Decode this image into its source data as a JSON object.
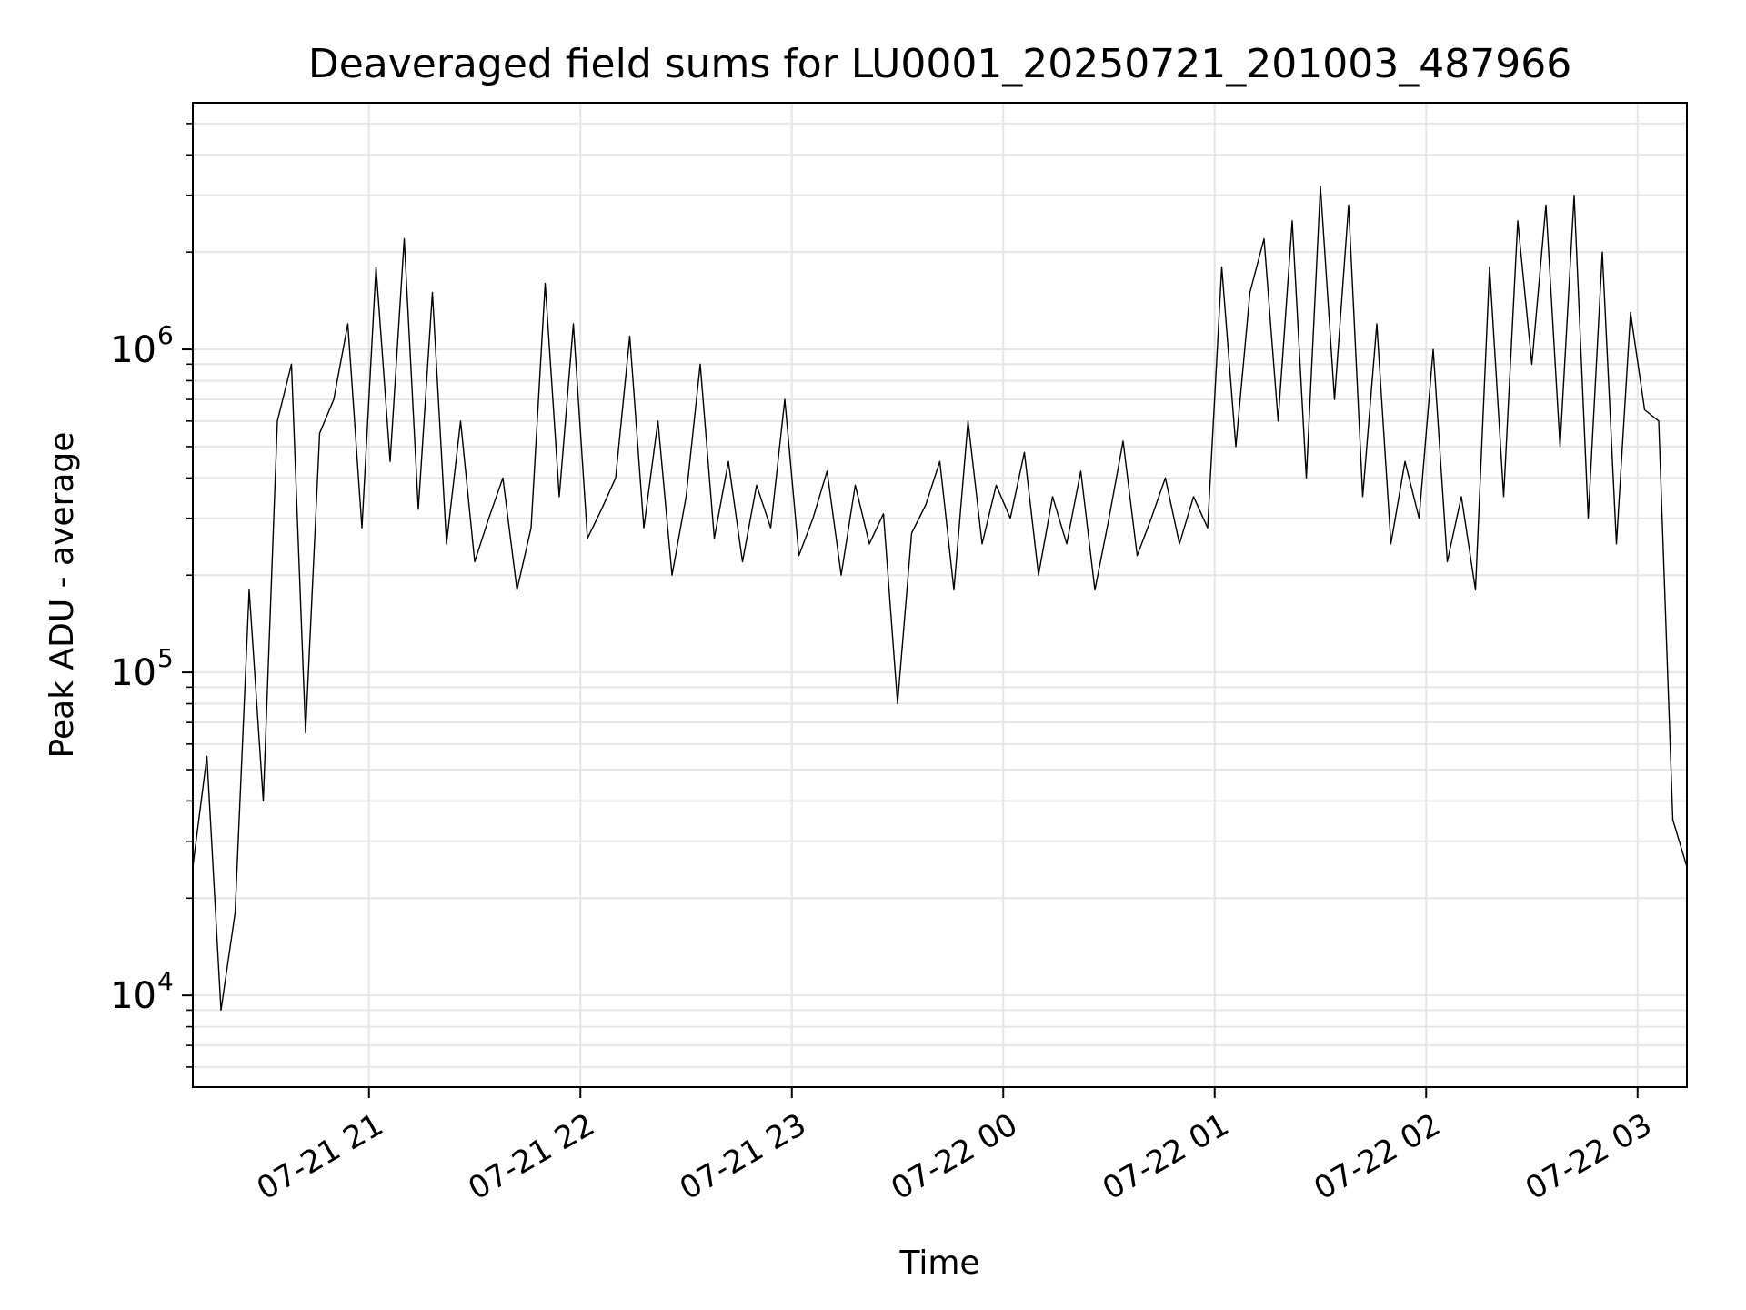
{
  "chart_data": {
    "type": "line",
    "title": "Deaveraged field sums for LU0001_20250721_201003_487966",
    "xlabel": "Time",
    "ylabel": "Peak ADU - average",
    "yscale": "log",
    "ylim": [
      5200,
      5800000
    ],
    "xlim": [
      "2025-07-21 20:10",
      "2025-07-22 03:14"
    ],
    "grid": true,
    "line_color": "#000000",
    "xticks": [
      {
        "t": "2025-07-21 21:00",
        "label": "07-21 21"
      },
      {
        "t": "2025-07-21 22:00",
        "label": "07-21 22"
      },
      {
        "t": "2025-07-21 23:00",
        "label": "07-21 23"
      },
      {
        "t": "2025-07-22 00:00",
        "label": "07-22 00"
      },
      {
        "t": "2025-07-22 01:00",
        "label": "07-22 01"
      },
      {
        "t": "2025-07-22 02:00",
        "label": "07-22 02"
      },
      {
        "t": "2025-07-22 03:00",
        "label": "07-22 03"
      }
    ],
    "yticks": [
      {
        "value": 10000,
        "base": "10",
        "exp": "4"
      },
      {
        "value": 100000,
        "base": "10",
        "exp": "5"
      },
      {
        "value": 1000000,
        "base": "10",
        "exp": "6"
      }
    ],
    "series": [
      {
        "x": [
          "2025-07-21 20:10",
          "2025-07-21 20:14",
          "2025-07-21 20:18",
          "2025-07-21 20:22",
          "2025-07-21 20:26",
          "2025-07-21 20:30",
          "2025-07-21 20:34",
          "2025-07-21 20:38",
          "2025-07-21 20:42",
          "2025-07-21 20:46",
          "2025-07-21 20:50",
          "2025-07-21 20:54",
          "2025-07-21 20:58",
          "2025-07-21 21:02",
          "2025-07-21 21:06",
          "2025-07-21 21:10",
          "2025-07-21 21:14",
          "2025-07-21 21:18",
          "2025-07-21 21:22",
          "2025-07-21 21:26",
          "2025-07-21 21:30",
          "2025-07-21 21:34",
          "2025-07-21 21:38",
          "2025-07-21 21:42",
          "2025-07-21 21:46",
          "2025-07-21 21:50",
          "2025-07-21 21:54",
          "2025-07-21 21:58",
          "2025-07-21 22:02",
          "2025-07-21 22:06",
          "2025-07-21 22:10",
          "2025-07-21 22:14",
          "2025-07-21 22:18",
          "2025-07-21 22:22",
          "2025-07-21 22:26",
          "2025-07-21 22:30",
          "2025-07-21 22:34",
          "2025-07-21 22:38",
          "2025-07-21 22:42",
          "2025-07-21 22:46",
          "2025-07-21 22:50",
          "2025-07-21 22:54",
          "2025-07-21 22:58",
          "2025-07-21 23:02",
          "2025-07-21 23:06",
          "2025-07-21 23:10",
          "2025-07-21 23:14",
          "2025-07-21 23:18",
          "2025-07-21 23:22",
          "2025-07-21 23:26",
          "2025-07-21 23:30",
          "2025-07-21 23:34",
          "2025-07-21 23:38",
          "2025-07-21 23:42",
          "2025-07-21 23:46",
          "2025-07-21 23:50",
          "2025-07-21 23:54",
          "2025-07-21 23:58",
          "2025-07-22 00:02",
          "2025-07-22 00:06",
          "2025-07-22 00:10",
          "2025-07-22 00:14",
          "2025-07-22 00:18",
          "2025-07-22 00:22",
          "2025-07-22 00:26",
          "2025-07-22 00:30",
          "2025-07-22 00:34",
          "2025-07-22 00:38",
          "2025-07-22 00:42",
          "2025-07-22 00:46",
          "2025-07-22 00:50",
          "2025-07-22 00:54",
          "2025-07-22 00:58",
          "2025-07-22 01:02",
          "2025-07-22 01:06",
          "2025-07-22 01:10",
          "2025-07-22 01:14",
          "2025-07-22 01:18",
          "2025-07-22 01:22",
          "2025-07-22 01:26",
          "2025-07-22 01:30",
          "2025-07-22 01:34",
          "2025-07-22 01:38",
          "2025-07-22 01:42",
          "2025-07-22 01:46",
          "2025-07-22 01:50",
          "2025-07-22 01:54",
          "2025-07-22 01:58",
          "2025-07-22 02:02",
          "2025-07-22 02:06",
          "2025-07-22 02:10",
          "2025-07-22 02:14",
          "2025-07-22 02:18",
          "2025-07-22 02:22",
          "2025-07-22 02:26",
          "2025-07-22 02:30",
          "2025-07-22 02:34",
          "2025-07-22 02:38",
          "2025-07-22 02:42",
          "2025-07-22 02:46",
          "2025-07-22 02:50",
          "2025-07-22 02:54",
          "2025-07-22 02:58",
          "2025-07-22 03:02",
          "2025-07-22 03:06",
          "2025-07-22 03:10",
          "2025-07-22 03:14"
        ],
        "values": [
          25000,
          55000,
          9000,
          18000,
          180000,
          40000,
          600000,
          900000,
          65000,
          550000,
          700000,
          1200000,
          280000,
          1800000,
          450000,
          2200000,
          320000,
          1500000,
          250000,
          600000,
          220000,
          300000,
          400000,
          180000,
          280000,
          1600000,
          350000,
          1200000,
          260000,
          320000,
          400000,
          1100000,
          280000,
          600000,
          200000,
          350000,
          900000,
          260000,
          450000,
          220000,
          380000,
          280000,
          700000,
          230000,
          300000,
          420000,
          200000,
          380000,
          250000,
          310000,
          80000,
          270000,
          330000,
          450000,
          180000,
          600000,
          250000,
          380000,
          300000,
          480000,
          200000,
          350000,
          250000,
          420000,
          180000,
          300000,
          520000,
          230000,
          300000,
          400000,
          250000,
          350000,
          280000,
          1800000,
          500000,
          1500000,
          2200000,
          600000,
          2500000,
          400000,
          3200000,
          700000,
          2800000,
          350000,
          1200000,
          250000,
          450000,
          300000,
          1000000,
          220000,
          350000,
          180000,
          1800000,
          350000,
          2500000,
          900000,
          2800000,
          500000,
          3000000,
          300000,
          2000000,
          250000,
          1300000,
          650000,
          600000,
          35000,
          25000
        ]
      }
    ]
  }
}
